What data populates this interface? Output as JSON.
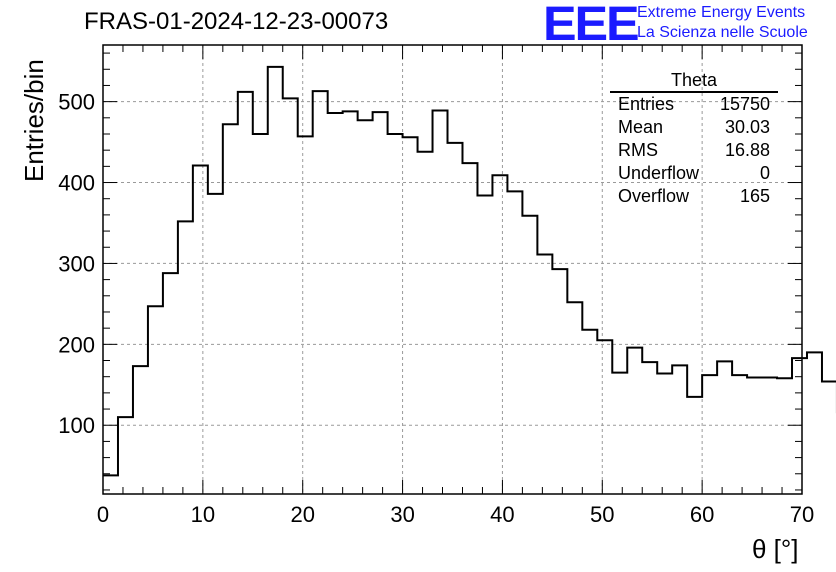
{
  "header": {
    "title": "FRAS-01-2024-12-23-00073",
    "logo_text": "EEE",
    "logo_line1": "Extreme Energy Events",
    "logo_line2": "La Scienza nelle Scuole"
  },
  "stats_box": {
    "title": "Theta",
    "rows": [
      {
        "label": "Entries",
        "value": "15750"
      },
      {
        "label": "Mean",
        "value": "30.03"
      },
      {
        "label": "RMS",
        "value": "16.88"
      },
      {
        "label": "Underflow",
        "value": "0"
      },
      {
        "label": "Overflow",
        "value": "165"
      }
    ]
  },
  "chart_data": {
    "type": "bar",
    "style": "step-histogram",
    "xlabel": "θ [°]",
    "ylabel": "Entries/bin",
    "xlim": [
      0,
      70
    ],
    "ylim": [
      15,
      570
    ],
    "bin_width": 1.5,
    "x_ticks": [
      0,
      10,
      20,
      30,
      40,
      50,
      60,
      70
    ],
    "y_ticks": [
      100,
      200,
      300,
      400,
      500
    ],
    "grid": true,
    "bin_edges_start": 0,
    "values": [
      38,
      110,
      173,
      247,
      288,
      352,
      421,
      386,
      472,
      512,
      460,
      543,
      504,
      457,
      513,
      486,
      488,
      477,
      487,
      460,
      456,
      438,
      489,
      449,
      424,
      384,
      409,
      389,
      359,
      311,
      293,
      252,
      218,
      205,
      165,
      196,
      178,
      164,
      174,
      135,
      162,
      179,
      162,
      159,
      159,
      158,
      183,
      190,
      154,
      116
    ]
  },
  "colors": {
    "logo": "#1b1bff",
    "line": "#000000",
    "grid": "#9a9a9a"
  }
}
